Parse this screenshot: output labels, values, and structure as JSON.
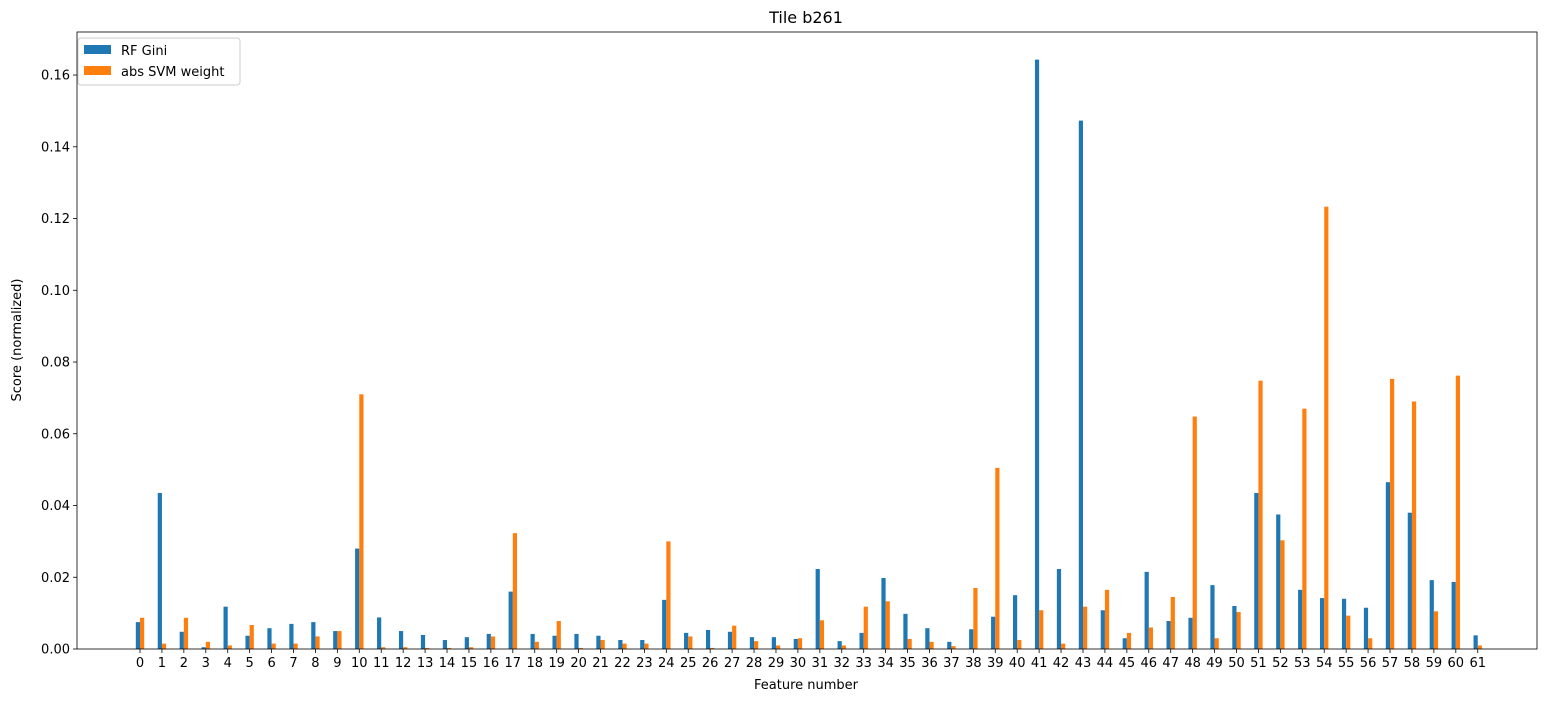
{
  "chart_data": {
    "type": "bar",
    "title": "Tile b261",
    "xlabel": "Feature number",
    "ylabel": "Score (normalized)",
    "ylim": [
      0,
      0.172
    ],
    "yticks": [
      "0.00",
      "0.02",
      "0.04",
      "0.06",
      "0.08",
      "0.10",
      "0.12",
      "0.14",
      "0.16"
    ],
    "categories": [
      "0",
      "1",
      "2",
      "3",
      "4",
      "5",
      "6",
      "7",
      "8",
      "9",
      "10",
      "11",
      "12",
      "13",
      "14",
      "15",
      "16",
      "17",
      "18",
      "19",
      "20",
      "21",
      "22",
      "23",
      "24",
      "25",
      "26",
      "27",
      "28",
      "29",
      "30",
      "31",
      "32",
      "33",
      "34",
      "35",
      "36",
      "37",
      "38",
      "39",
      "40",
      "41",
      "42",
      "43",
      "44",
      "45",
      "46",
      "47",
      "48",
      "49",
      "50",
      "51",
      "52",
      "53",
      "54",
      "55",
      "56",
      "57",
      "58",
      "59",
      "60",
      "61"
    ],
    "legend_position": "top-left",
    "grid": false,
    "series": [
      {
        "name": "RF Gini",
        "color": "#1f77b4",
        "values": [
          0.0075,
          0.0435,
          0.0048,
          0.0005,
          0.0118,
          0.0037,
          0.0058,
          0.007,
          0.0075,
          0.005,
          0.028,
          0.0088,
          0.005,
          0.0039,
          0.0025,
          0.0033,
          0.0042,
          0.016,
          0.0042,
          0.0037,
          0.0042,
          0.0037,
          0.0025,
          0.0025,
          0.0137,
          0.0045,
          0.0053,
          0.0048,
          0.0033,
          0.0033,
          0.0028,
          0.0223,
          0.0022,
          0.0045,
          0.0198,
          0.0098,
          0.0058,
          0.002,
          0.0055,
          0.009,
          0.015,
          0.1643,
          0.0223,
          0.1473,
          0.0108,
          0.003,
          0.0215,
          0.0078,
          0.0087,
          0.0178,
          0.012,
          0.0435,
          0.0375,
          0.0165,
          0.0142,
          0.014,
          0.0115,
          0.0465,
          0.038,
          0.0192,
          0.0187,
          0.0038
        ]
      },
      {
        "name": "abs SVM weight",
        "color": "#ff7f0e",
        "values": [
          0.0087,
          0.0015,
          0.0087,
          0.002,
          0.001,
          0.0067,
          0.0015,
          0.0015,
          0.0035,
          0.005,
          0.071,
          0.0005,
          0.0005,
          0.0003,
          0.0003,
          0.0005,
          0.0035,
          0.0323,
          0.002,
          0.0078,
          0.0003,
          0.0025,
          0.0015,
          0.0015,
          0.03,
          0.0035,
          0.0003,
          0.0065,
          0.0022,
          0.001,
          0.003,
          0.008,
          0.001,
          0.0118,
          0.0133,
          0.0028,
          0.002,
          0.0008,
          0.017,
          0.0505,
          0.0025,
          0.0108,
          0.0015,
          0.0118,
          0.0165,
          0.0045,
          0.006,
          0.0145,
          0.0648,
          0.003,
          0.0103,
          0.0748,
          0.0303,
          0.067,
          0.1233,
          0.0093,
          0.003,
          0.0753,
          0.069,
          0.0105,
          0.0762,
          0.001
        ]
      }
    ]
  }
}
